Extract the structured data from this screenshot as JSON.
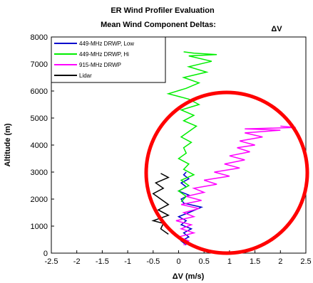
{
  "chart_data": {
    "type": "line",
    "title": "ER Wind Profiler Evaluation",
    "subtitle": "Mean Wind Component Deltas:",
    "title_symbol": "ΔV",
    "xlabel": "ΔV (m/s)",
    "ylabel": "Altitude (m)",
    "xlim": [
      -2.5,
      2.5
    ],
    "ylim": [
      0,
      8000
    ],
    "xticks": [
      "-2.5",
      "-2",
      "-1.5",
      "-1",
      "-0.5",
      "0",
      "0.5",
      "1",
      "1.5",
      "2",
      "2.5"
    ],
    "yticks": [
      "0",
      "1000",
      "2000",
      "3000",
      "4000",
      "5000",
      "6000",
      "7000",
      "8000"
    ],
    "grid": false,
    "legend_position": "top-left",
    "annotation": "red circle highlighting 915-MHz DRWP deltas",
    "series": [
      {
        "name": "449-MHz DRWP, Low",
        "color": "#0000cc",
        "points": [
          [
            0.15,
            300
          ],
          [
            0.05,
            450
          ],
          [
            0.2,
            600
          ],
          [
            0.1,
            750
          ],
          [
            0.25,
            900
          ],
          [
            0.05,
            1050
          ],
          [
            0.15,
            1200
          ],
          [
            0.0,
            1350
          ],
          [
            0.2,
            1500
          ],
          [
            0.45,
            1700
          ],
          [
            0.1,
            1850
          ],
          [
            0.05,
            2000
          ],
          [
            0.2,
            2150
          ],
          [
            0.0,
            2300
          ],
          [
            0.15,
            2450
          ],
          [
            0.05,
            2600
          ],
          [
            0.2,
            2750
          ],
          [
            0.1,
            2900
          ],
          [
            0.15,
            3000
          ]
        ]
      },
      {
        "name": "449-MHz DRWP, Hi",
        "color": "#00ee00",
        "points": [
          [
            0.05,
            1900
          ],
          [
            0.15,
            2100
          ],
          [
            0.0,
            2300
          ],
          [
            0.2,
            2500
          ],
          [
            0.05,
            2700
          ],
          [
            0.3,
            2900
          ],
          [
            0.1,
            3100
          ],
          [
            0.2,
            3300
          ],
          [
            0.0,
            3500
          ],
          [
            0.15,
            3700
          ],
          [
            0.1,
            3900
          ],
          [
            0.25,
            4100
          ],
          [
            0.05,
            4300
          ],
          [
            0.2,
            4500
          ],
          [
            0.35,
            4700
          ],
          [
            0.1,
            4900
          ],
          [
            0.3,
            5100
          ],
          [
            0.05,
            5300
          ],
          [
            0.4,
            5500
          ],
          [
            0.2,
            5700
          ],
          [
            -0.2,
            5900
          ],
          [
            0.15,
            6100
          ],
          [
            0.4,
            6300
          ],
          [
            0.1,
            6500
          ],
          [
            0.55,
            6700
          ],
          [
            0.2,
            6900
          ],
          [
            0.65,
            7100
          ],
          [
            0.2,
            7300
          ],
          [
            0.75,
            7350
          ],
          [
            0.3,
            7400
          ],
          [
            0.1,
            7450
          ]
        ]
      },
      {
        "name": "915-MHz DRWP",
        "color": "#ff00ff",
        "points": [
          [
            0.1,
            300
          ],
          [
            0.2,
            450
          ],
          [
            0.0,
            600
          ],
          [
            0.3,
            750
          ],
          [
            0.05,
            900
          ],
          [
            0.25,
            1050
          ],
          [
            -0.05,
            1200
          ],
          [
            0.3,
            1350
          ],
          [
            0.1,
            1500
          ],
          [
            0.4,
            1650
          ],
          [
            0.05,
            1800
          ],
          [
            0.45,
            1950
          ],
          [
            0.15,
            2100
          ],
          [
            0.5,
            2250
          ],
          [
            0.3,
            2400
          ],
          [
            0.75,
            2550
          ],
          [
            0.5,
            2700
          ],
          [
            1.0,
            2850
          ],
          [
            0.7,
            3000
          ],
          [
            1.2,
            3150
          ],
          [
            0.9,
            3300
          ],
          [
            1.3,
            3450
          ],
          [
            1.0,
            3600
          ],
          [
            1.4,
            3750
          ],
          [
            1.15,
            3900
          ],
          [
            1.5,
            4000
          ],
          [
            1.2,
            4150
          ],
          [
            1.65,
            4300
          ],
          [
            1.3,
            4450
          ],
          [
            2.0,
            4550
          ],
          [
            1.3,
            4600
          ],
          [
            2.3,
            4650
          ],
          [
            2.0,
            4700
          ]
        ]
      },
      {
        "name": "Lidar",
        "color": "#000000",
        "points": [
          [
            -0.2,
            700
          ],
          [
            -0.35,
            900
          ],
          [
            -0.3,
            1100
          ],
          [
            -0.5,
            1200
          ],
          [
            -0.2,
            1400
          ],
          [
            -0.4,
            1600
          ],
          [
            -0.2,
            1800
          ],
          [
            -0.35,
            2000
          ],
          [
            -0.5,
            2200
          ],
          [
            -0.3,
            2400
          ],
          [
            -0.45,
            2600
          ],
          [
            -0.2,
            2800
          ],
          [
            -0.35,
            2950
          ]
        ]
      }
    ]
  }
}
